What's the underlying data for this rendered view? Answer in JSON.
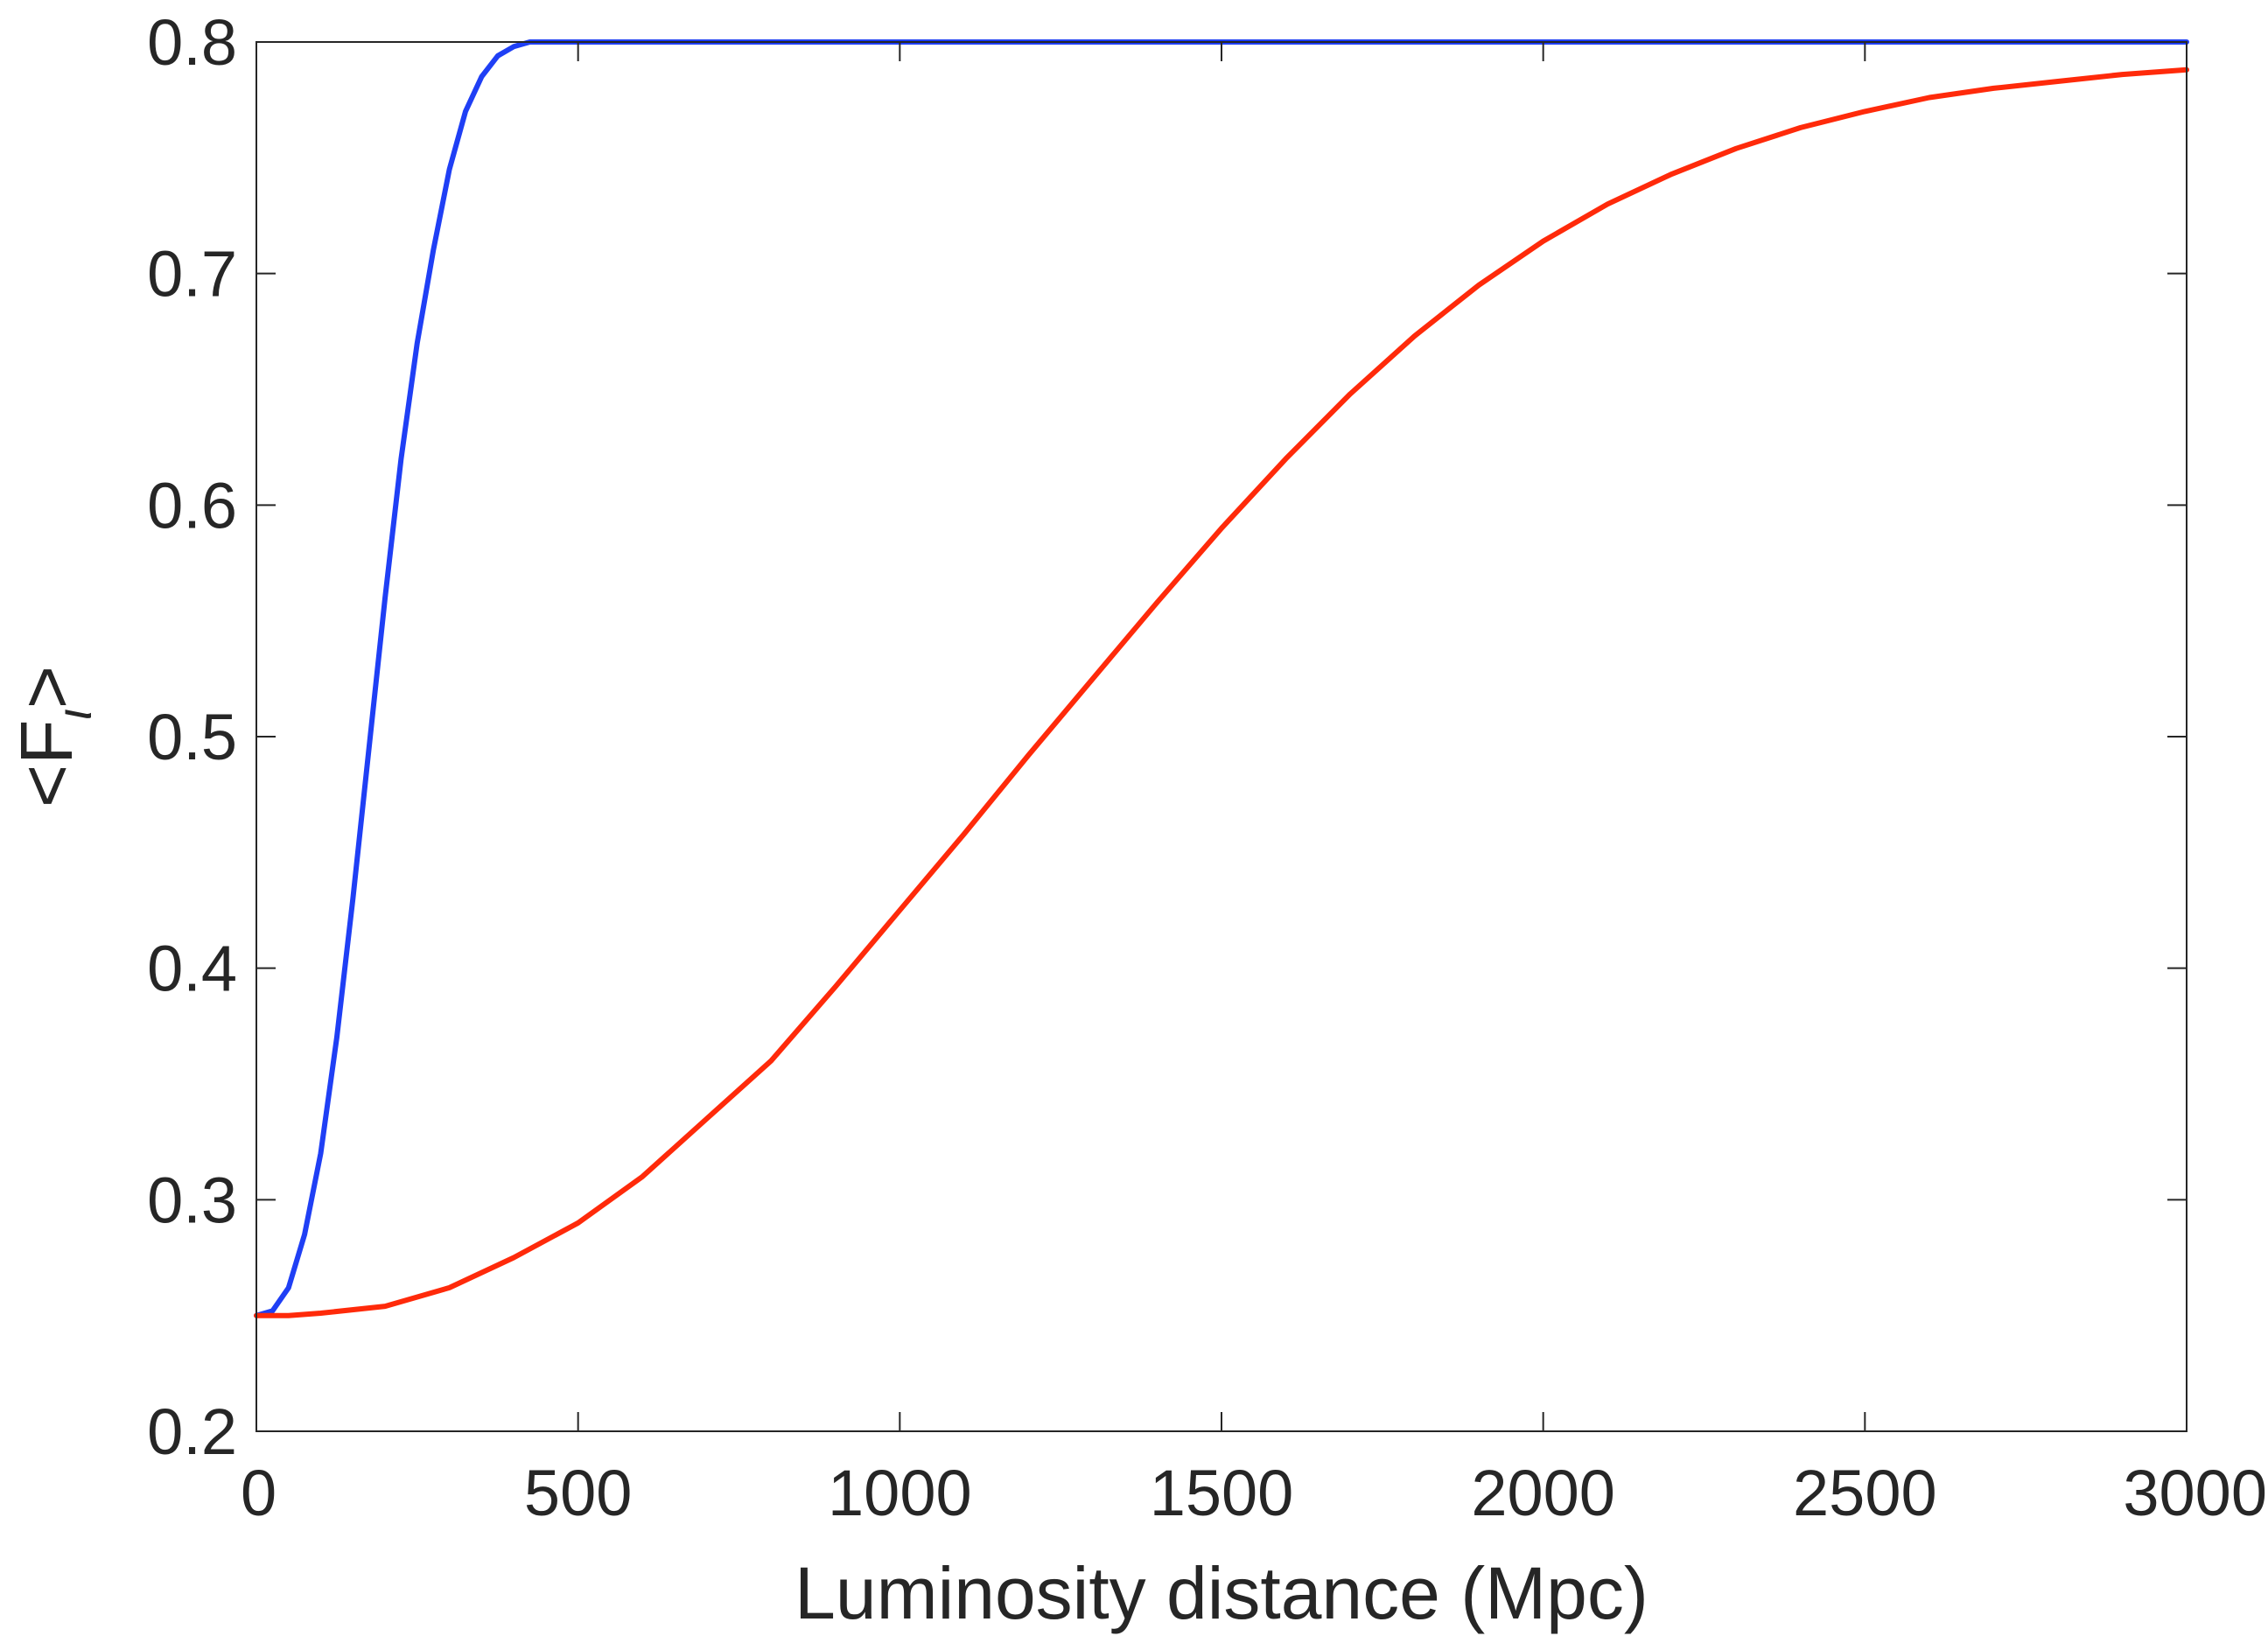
{
  "chart_data": {
    "type": "line",
    "title": "",
    "xlabel": "Luminosity distance (Mpc)",
    "ylabel_main": "<F",
    "ylabel_sub": "ι",
    "ylabel_close": ">",
    "xlim": [
      0,
      3000
    ],
    "ylim": [
      0.2,
      0.8
    ],
    "xticks": [
      0,
      500,
      1000,
      1500,
      2000,
      2500,
      3000
    ],
    "xtick_labels": [
      "0",
      "500",
      "1000",
      "1500",
      "2000",
      "2500",
      "3000"
    ],
    "yticks": [
      0.2,
      0.3,
      0.4,
      0.5,
      0.6,
      0.7,
      0.8
    ],
    "ytick_labels": [
      "0.2",
      "0.3",
      "0.4",
      "0.5",
      "0.6",
      "0.7",
      "0.8"
    ],
    "grid": false,
    "series": [
      {
        "color": "#1f3ff5",
        "x": [
          0,
          25,
          50,
          75,
          100,
          125,
          150,
          175,
          200,
          225,
          250,
          275,
          300,
          325,
          350,
          375,
          400,
          425,
          450,
          475,
          500,
          1000,
          1500,
          2000,
          2500,
          3000
        ],
        "y": [
          0.25,
          0.252,
          0.262,
          0.285,
          0.32,
          0.37,
          0.43,
          0.495,
          0.56,
          0.62,
          0.67,
          0.71,
          0.745,
          0.77,
          0.785,
          0.794,
          0.798,
          0.8,
          0.8,
          0.8,
          0.8,
          0.8,
          0.8,
          0.8,
          0.8,
          0.8
        ]
      },
      {
        "color": "#ff2a0a",
        "x": [
          0,
          50,
          100,
          200,
          300,
          400,
          500,
          600,
          700,
          800,
          900,
          1000,
          1100,
          1200,
          1300,
          1400,
          1500,
          1600,
          1700,
          1800,
          1900,
          2000,
          2100,
          2200,
          2300,
          2400,
          2500,
          2600,
          2700,
          2800,
          2900,
          3000
        ],
        "y": [
          0.25,
          0.25,
          0.251,
          0.254,
          0.262,
          0.275,
          0.29,
          0.31,
          0.335,
          0.36,
          0.392,
          0.425,
          0.458,
          0.492,
          0.525,
          0.558,
          0.59,
          0.62,
          0.648,
          0.673,
          0.695,
          0.714,
          0.73,
          0.743,
          0.754,
          0.763,
          0.77,
          0.776,
          0.78,
          0.783,
          0.786,
          0.788
        ]
      }
    ]
  }
}
